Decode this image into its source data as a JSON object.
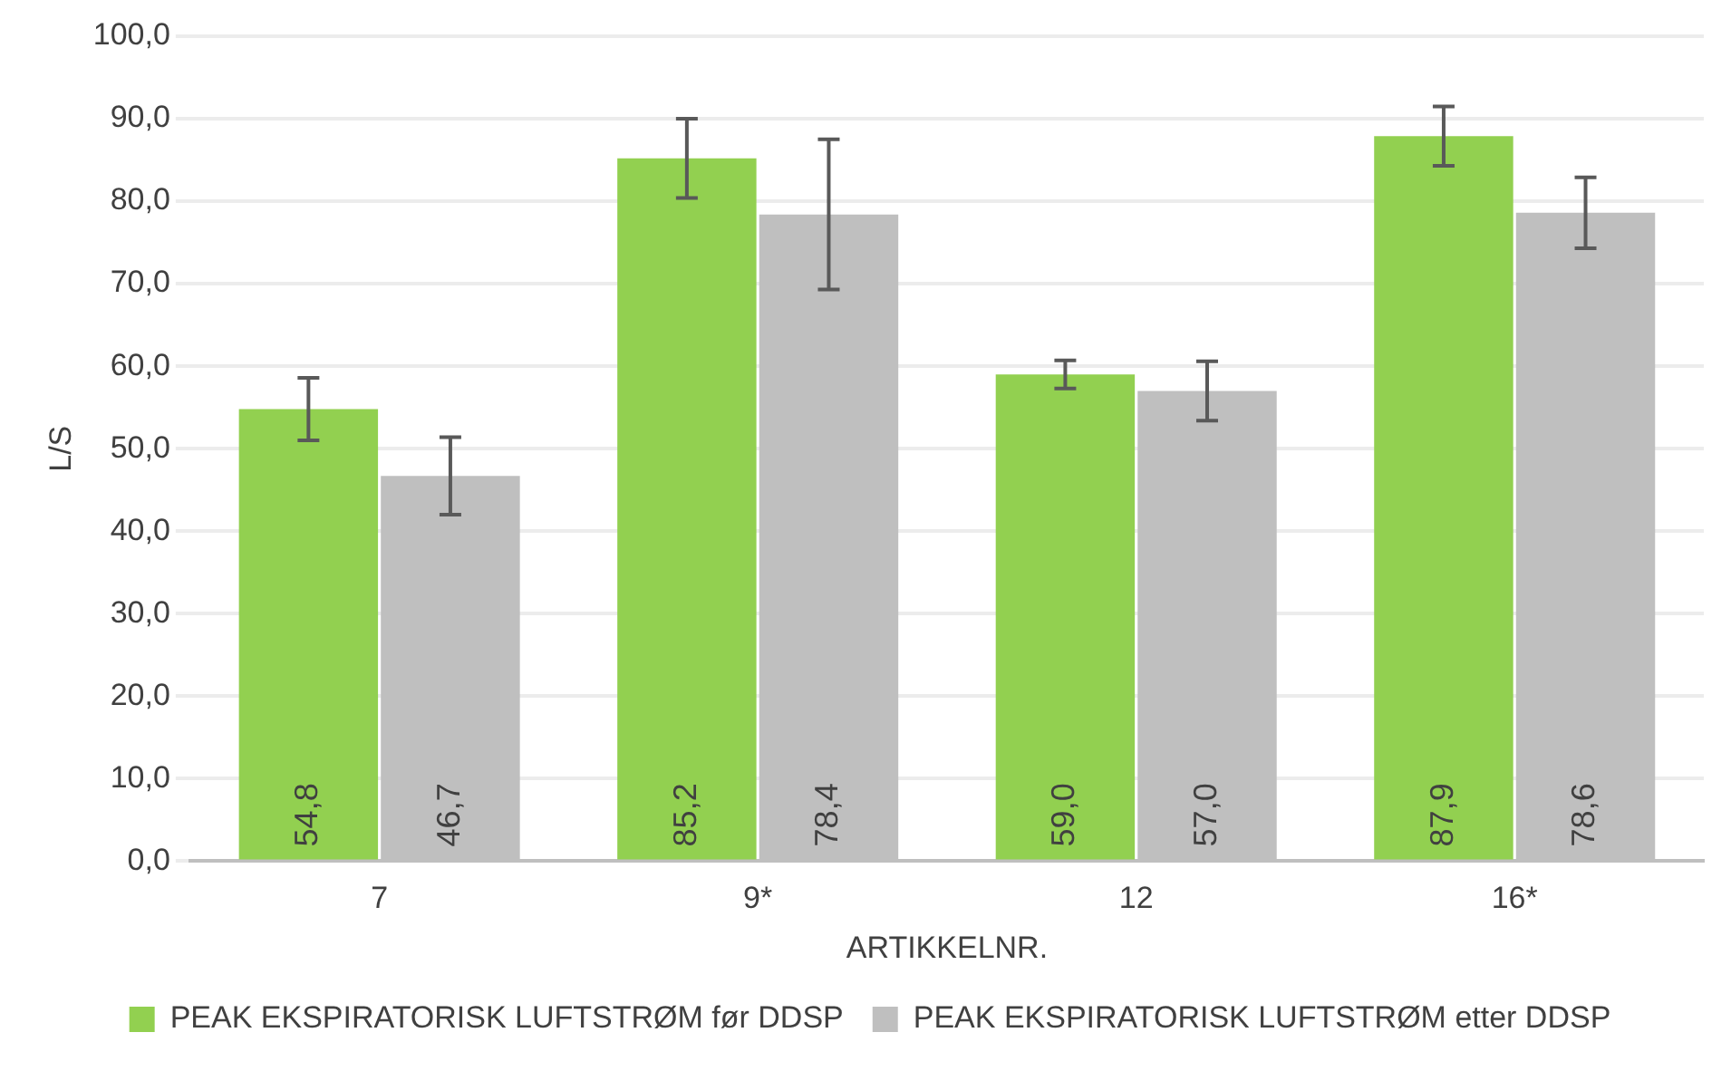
{
  "chart_data": {
    "type": "bar",
    "xlabel": "ARTIKKELNR.",
    "ylabel": "L/S",
    "categories": [
      "7",
      "9*",
      "12",
      "16*"
    ],
    "series": [
      {
        "name": "PEAK EKSPIRATORISK LUFTSTRØM før DDSP",
        "color": "#92d050",
        "values": [
          54.8,
          85.2,
          59.0,
          87.9
        ],
        "errors": [
          3.8,
          4.8,
          1.7,
          3.6
        ],
        "value_labels": [
          "54,8",
          "85,2",
          "59,0",
          "87,9"
        ]
      },
      {
        "name": "PEAK EKSPIRATORISK LUFTSTRØM etter DDSP",
        "color": "#bfbfbf",
        "values": [
          46.7,
          78.4,
          57.0,
          78.6
        ],
        "errors": [
          4.7,
          9.1,
          3.6,
          4.3
        ],
        "value_labels": [
          "46,7",
          "78,4",
          "57,0",
          "78,6"
        ]
      }
    ],
    "ylim": [
      0,
      100
    ],
    "yticks": [
      {
        "value": 0,
        "label": "0,0"
      },
      {
        "value": 10,
        "label": "10,0"
      },
      {
        "value": 20,
        "label": "20,0"
      },
      {
        "value": 30,
        "label": "30,0"
      },
      {
        "value": 40,
        "label": "40,0"
      },
      {
        "value": 50,
        "label": "50,0"
      },
      {
        "value": 60,
        "label": "60,0"
      },
      {
        "value": 70,
        "label": "70,0"
      },
      {
        "value": 80,
        "label": "80,0"
      },
      {
        "value": 90,
        "label": "90,0"
      },
      {
        "value": 100,
        "label": "100,0"
      }
    ],
    "grid": "y",
    "legend": "bottom"
  }
}
